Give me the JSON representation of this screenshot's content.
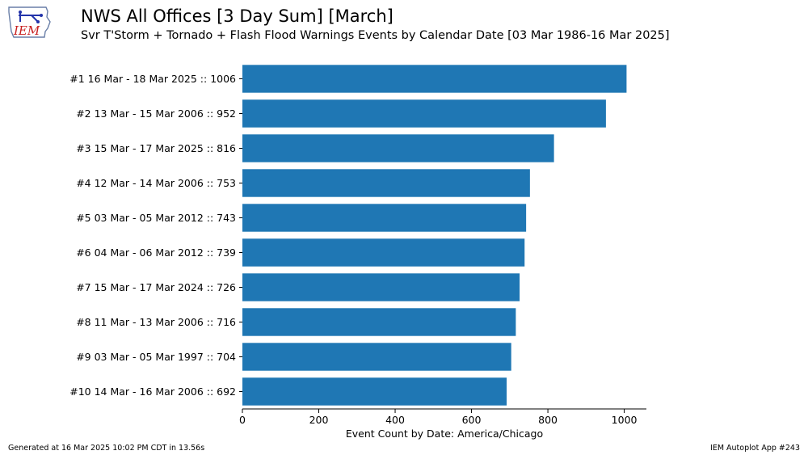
{
  "header": {
    "logo_text": "IEM",
    "title": "NWS All Offices [3 Day Sum] [March]",
    "subtitle": "Svr T'Storm + Tornado + Flash Flood Warnings Events by Calendar Date [03 Mar 1986-16 Mar 2025]"
  },
  "footer": {
    "generated": "Generated at 16 Mar 2025 10:02 PM CDT in 13.56s",
    "app": "IEM Autoplot App #243"
  },
  "chart_data": {
    "type": "bar",
    "orientation": "horizontal",
    "categories": [
      "#1  16 Mar - 18 Mar 2025 :: 1006",
      "#2  13 Mar - 15 Mar 2006 :: 952",
      "#3  15 Mar - 17 Mar 2025 :: 816",
      "#4  12 Mar - 14 Mar 2006 :: 753",
      "#5  03 Mar - 05 Mar 2012 :: 743",
      "#6  04 Mar - 06 Mar 2012 :: 739",
      "#7  15 Mar - 17 Mar 2024 :: 726",
      "#8  11 Mar - 13 Mar 2006 :: 716",
      "#9  03 Mar - 05 Mar 1997 :: 704",
      "#10  14 Mar - 16 Mar 2006 :: 692"
    ],
    "values": [
      1006,
      952,
      816,
      753,
      743,
      739,
      726,
      716,
      704,
      692
    ],
    "xlabel": "Event Count by Date: America/Chicago",
    "ylabel": "",
    "xlim": [
      0,
      1058
    ],
    "xticks": [
      0,
      200,
      400,
      600,
      800,
      1000
    ],
    "color": "#1f77b4",
    "grid": false
  }
}
